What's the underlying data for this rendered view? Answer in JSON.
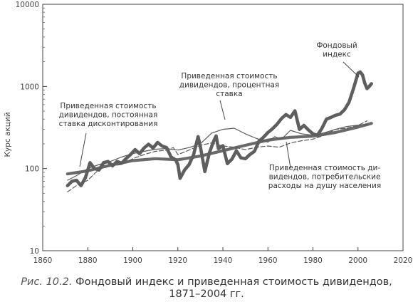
{
  "chart_data": {
    "type": "line",
    "y_scale": "log",
    "xlim": [
      1860,
      2020
    ],
    "ylim": [
      10,
      10000
    ],
    "grid": false,
    "x_ticks": [
      "1860",
      "1880",
      "1900",
      "1920",
      "1940",
      "1960",
      "1980",
      "2000",
      "2020"
    ],
    "y_ticks": [
      "10",
      "100",
      "1000",
      "10000"
    ],
    "ylabel": "Курс акций",
    "annotations": {
      "index": [
        "Фондовый",
        "индекс"
      ],
      "constant": [
        "Приведенная стоимость",
        "дивидендов, постоянная",
        "ставка дисконтирования"
      ],
      "interest": [
        "Приведенная стоимость",
        "дивидендов, процентная",
        "ставка"
      ],
      "consumption": [
        "Приведенная стоимость ди-",
        "видендов, потребительские",
        "расходы на душу населения"
      ]
    },
    "series": [
      {
        "x": [
          1871,
          1873,
          1875,
          1877,
          1879,
          1881,
          1883,
          1885,
          1887,
          1889,
          1891,
          1893,
          1895,
          1897,
          1899,
          1901,
          1903,
          1905,
          1907,
          1909,
          1911,
          1913,
          1915,
          1917,
          1919,
          1920,
          1921,
          1923,
          1925,
          1927,
          1929,
          1930,
          1932,
          1934,
          1936,
          1937,
          1938,
          1940,
          1942,
          1944,
          1946,
          1948,
          1950,
          1952,
          1954,
          1956,
          1958,
          1960,
          1962,
          1964,
          1966,
          1968,
          1970,
          1972,
          1974,
          1976,
          1978,
          1980,
          1982,
          1984,
          1986,
          1988,
          1990,
          1992,
          1994,
          1996,
          1998,
          2000,
          2001,
          2002,
          2003,
          2004,
          2005,
          2006
        ],
        "values": [
          62,
          70,
          72,
          62,
          78,
          118,
          100,
          96,
          118,
          122,
          108,
          122,
          116,
          132,
          148,
          170,
          152,
          178,
          198,
          178,
          208,
          188,
          180,
          138,
          128,
          112,
          76,
          96,
          112,
          148,
          245,
          185,
          92,
          155,
          220,
          250,
          175,
          190,
          115,
          130,
          165,
          135,
          132,
          148,
          162,
          215,
          240,
          275,
          305,
          345,
          405,
          455,
          420,
          505,
          300,
          335,
          295,
          265,
          255,
          310,
          400,
          420,
          445,
          460,
          520,
          640,
          940,
          1450,
          1500,
          1380,
          1100,
          940,
          1000,
          1080
        ]
      },
      {
        "x": [
          1871,
          1880,
          1890,
          1900,
          1910,
          1920,
          1930,
          1940,
          1950,
          1960,
          1970,
          1980,
          1990,
          2000,
          2006
        ],
        "values": [
          86,
          94,
          110,
          125,
          132,
          128,
          142,
          165,
          192,
          222,
          240,
          248,
          275,
          320,
          355
        ]
      },
      {
        "x": [
          1871,
          1875,
          1880,
          1885,
          1890,
          1895,
          1900,
          1905,
          1910,
          1915,
          1920,
          1925,
          1930,
          1935,
          1940,
          1945,
          1950,
          1955,
          1960,
          1963,
          1966,
          1970,
          1975,
          1980,
          1985,
          1990,
          1995,
          2000,
          2004
        ],
        "values": [
          72,
          82,
          100,
          112,
          122,
          138,
          152,
          162,
          172,
          175,
          168,
          180,
          200,
          270,
          300,
          310,
          265,
          232,
          210,
          245,
          228,
          292,
          265,
          255,
          272,
          300,
          325,
          338,
          345
        ]
      },
      {
        "x": [
          1871,
          1875,
          1880,
          1885,
          1890,
          1895,
          1900,
          1905,
          1910,
          1915,
          1918,
          1920,
          1925,
          1930,
          1935,
          1940,
          1945,
          1950,
          1955,
          1960,
          1965,
          1970,
          1975,
          1980,
          1985,
          1990,
          1995,
          2000,
          2004
        ],
        "values": [
          52,
          62,
          72,
          98,
          108,
          112,
          132,
          148,
          162,
          168,
          180,
          148,
          168,
          192,
          205,
          188,
          182,
          170,
          182,
          188,
          182,
          205,
          218,
          228,
          255,
          300,
          310,
          335,
          380
        ]
      }
    ]
  },
  "caption": {
    "lead": "Рис. 10.2.",
    "rest": " Фондовый индекс и приведенная стоимость дивидендов,",
    "line2": "1871–2004 гг."
  }
}
